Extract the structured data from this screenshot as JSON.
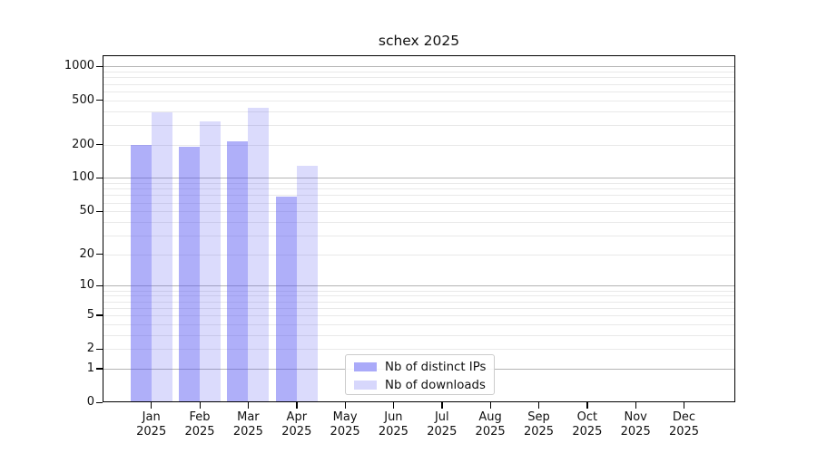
{
  "title": "schex 2025",
  "chart_data": {
    "type": "bar",
    "title": "schex 2025",
    "categories": [
      "Jan 2025",
      "Feb 2025",
      "Mar 2025",
      "Apr 2025",
      "May 2025",
      "Jun 2025",
      "Jul 2025",
      "Aug 2025",
      "Sep 2025",
      "Oct 2025",
      "Nov 2025",
      "Dec 2025"
    ],
    "series": [
      {
        "name": "Nb of distinct IPs",
        "legend_color": "#aaaaf9",
        "bar_color": "rgba(86,86,243,0.47)",
        "values": [
          200,
          190,
          215,
          68,
          null,
          null,
          null,
          null,
          null,
          null,
          null,
          null
        ]
      },
      {
        "name": "Nb of downloads",
        "legend_color": "#d7d7fc",
        "bar_color": "rgba(86,86,243,0.21)",
        "values": [
          390,
          320,
          430,
          130,
          null,
          null,
          null,
          null,
          null,
          null,
          null,
          null
        ]
      }
    ],
    "y_scale": "log10(value+1)",
    "y_ticks": [
      0,
      1,
      2,
      5,
      10,
      20,
      50,
      100,
      200,
      500,
      1000
    ],
    "y_major_gridlines": [
      1,
      10,
      100,
      1000
    ],
    "y_minor_gridlines": [
      2,
      3,
      4,
      5,
      6,
      7,
      8,
      9,
      20,
      30,
      40,
      50,
      60,
      70,
      80,
      90,
      200,
      300,
      400,
      500,
      600,
      700,
      800,
      900
    ],
    "ylim": [
      0,
      1240
    ],
    "xlabel": "",
    "ylabel": "",
    "grid": true,
    "legend_position": "bottom-center",
    "colors": {
      "major_grid": "#b4b4b4",
      "minor_grid": "#e9e9e9",
      "axis": "#000000",
      "text": "#111111",
      "background": "#ffffff"
    }
  }
}
